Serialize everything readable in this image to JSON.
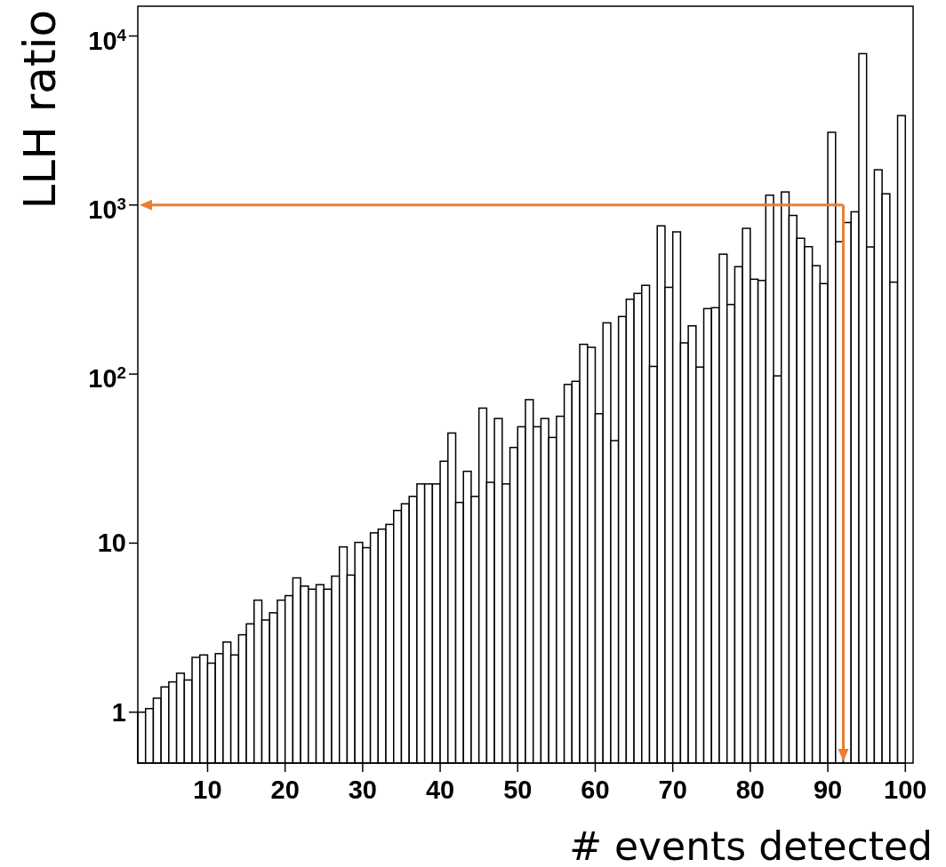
{
  "chart_data": {
    "type": "histogram",
    "xlabel": "# events detected",
    "ylabel": "LLH ratio",
    "color": "#000000",
    "log": "y",
    "bins": [
      1,
      2,
      3,
      4,
      5,
      6,
      7,
      8,
      9,
      10,
      11,
      12,
      13,
      14,
      15,
      16,
      17,
      18,
      19,
      20,
      21,
      22,
      23,
      24,
      25,
      26,
      27,
      28,
      29,
      30,
      31,
      32,
      33,
      34,
      35,
      36,
      37,
      38,
      39,
      40,
      41,
      42,
      43,
      44,
      45,
      46,
      47,
      48,
      49,
      50,
      51,
      52,
      53,
      54,
      55,
      56,
      57,
      58,
      59,
      60,
      61,
      62,
      63,
      64,
      65,
      66,
      67,
      68,
      69,
      70,
      71,
      72,
      73,
      74,
      75,
      76,
      77,
      78,
      79,
      80,
      81,
      82,
      83,
      84,
      85,
      86,
      87,
      88,
      89,
      90,
      91,
      92,
      93,
      94,
      95,
      96,
      97,
      98,
      99,
      100
    ],
    "values": [
      1.0,
      1.05,
      1.21,
      1.41,
      1.51,
      1.7,
      1.55,
      2.11,
      2.18,
      1.95,
      2.22,
      2.6,
      2.18,
      2.87,
      3.33,
      4.6,
      3.51,
      3.87,
      4.6,
      4.89,
      6.23,
      5.57,
      5.34,
      5.68,
      5.34,
      6.38,
      9.5,
      6.47,
      10.1,
      9.4,
      11.5,
      12.1,
      12.9,
      15.6,
      17.1,
      18.9,
      22.4,
      22.4,
      22.4,
      30.5,
      44.8,
      17.4,
      26.6,
      18.9,
      62.9,
      22.9,
      54.6,
      22.4,
      36.8,
      48.8,
      70.6,
      48.8,
      54.6,
      42.2,
      56.3,
      86.9,
      90.6,
      150,
      144,
      58.3,
      201,
      40.4,
      219,
      277,
      300,
      335,
      111,
      753,
      326,
      694,
      153,
      193,
      110,
      244,
      247,
      512,
      258,
      432,
      728,
      364,
      358,
      1144,
      97.6,
      1195,
      868,
      636,
      567,
      438,
      343,
      2693,
      607,
      788,
      912,
      7860,
      565,
      1617,
      1166,
      350,
      3381
    ],
    "xlim": [
      1,
      101
    ],
    "ylim": [
      0.5,
      15000
    ],
    "xticks": [
      10,
      20,
      30,
      40,
      50,
      60,
      70,
      80,
      90,
      100
    ],
    "yticks": [
      1,
      10,
      {
        "value": 100,
        "label": "10$^{2}$"
      },
      {
        "value": 1000,
        "label": "10$^{3}$"
      },
      {
        "value": 10000,
        "label": "10$^{4}$"
      }
    ],
    "ref_lines": [
      {
        "axis": "y",
        "value": 1000,
        "color": "#ed7d31"
      },
      {
        "axis": "x",
        "value": 92,
        "color": "#ed7d31"
      }
    ],
    "grid": false
  }
}
